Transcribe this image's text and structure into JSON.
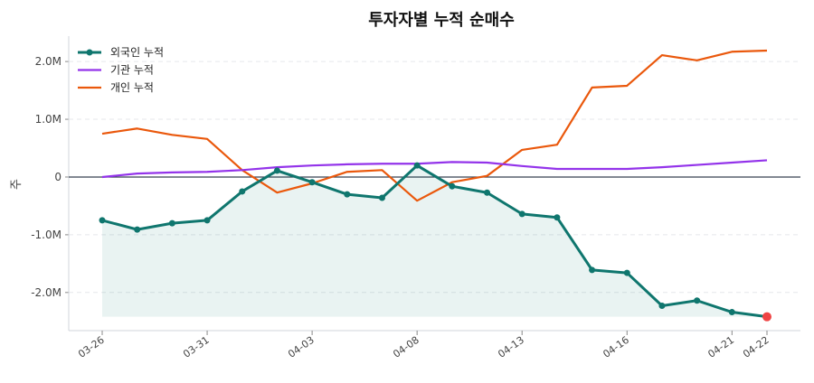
{
  "chart_data": {
    "type": "line",
    "title": "투자자별 누적 순매수",
    "ylabel": "주",
    "xlabel": "",
    "ylim": [
      -2.66,
      2.44
    ],
    "y_unit_note": "M",
    "yticks": [
      {
        "v": 2,
        "label": "2.0M"
      },
      {
        "v": 1,
        "label": "1.0M"
      },
      {
        "v": 0,
        "label": "0"
      },
      {
        "v": -1,
        "label": "-1.0M"
      },
      {
        "v": -2,
        "label": "-2.0M"
      }
    ],
    "xticks": [
      {
        "i": 0,
        "label": "03-26"
      },
      {
        "i": 3,
        "label": "03-31"
      },
      {
        "i": 6,
        "label": "04-03"
      },
      {
        "i": 9,
        "label": "04-08"
      },
      {
        "i": 12,
        "label": "04-13"
      },
      {
        "i": 15,
        "label": "04-16"
      },
      {
        "i": 18,
        "label": "04-21"
      },
      {
        "i": 19,
        "label": "04-22"
      }
    ],
    "grid": true,
    "legend": "top-left",
    "series": [
      {
        "name": "외국인 누적",
        "color": "#0f766e",
        "markers": true,
        "fill": true,
        "values": [
          -0.75,
          -0.91,
          -0.8,
          -0.75,
          -0.25,
          0.11,
          -0.09,
          -0.3,
          -0.36,
          0.2,
          -0.16,
          -0.27,
          -0.64,
          -0.7,
          -1.61,
          -1.66,
          -2.23,
          -2.14,
          -2.34,
          -2.42
        ]
      },
      {
        "name": "기관 누적",
        "color": "#9333ea",
        "values": [
          0,
          0.06,
          0.08,
          0.09,
          0.12,
          0.17,
          0.2,
          0.22,
          0.23,
          0.23,
          0.26,
          0.25,
          0.19,
          0.14,
          0.14,
          0.14,
          0.17,
          0.21,
          0.25,
          0.29
        ]
      },
      {
        "name": "개인 누적",
        "color": "#ea580c",
        "values": [
          0.75,
          0.84,
          0.73,
          0.66,
          0.12,
          -0.27,
          -0.11,
          0.09,
          0.12,
          -0.41,
          -0.09,
          0.02,
          0.47,
          0.56,
          1.55,
          1.58,
          2.11,
          2.02,
          2.17,
          2.19
        ]
      }
    ],
    "last_point_color": "#ef4444"
  }
}
